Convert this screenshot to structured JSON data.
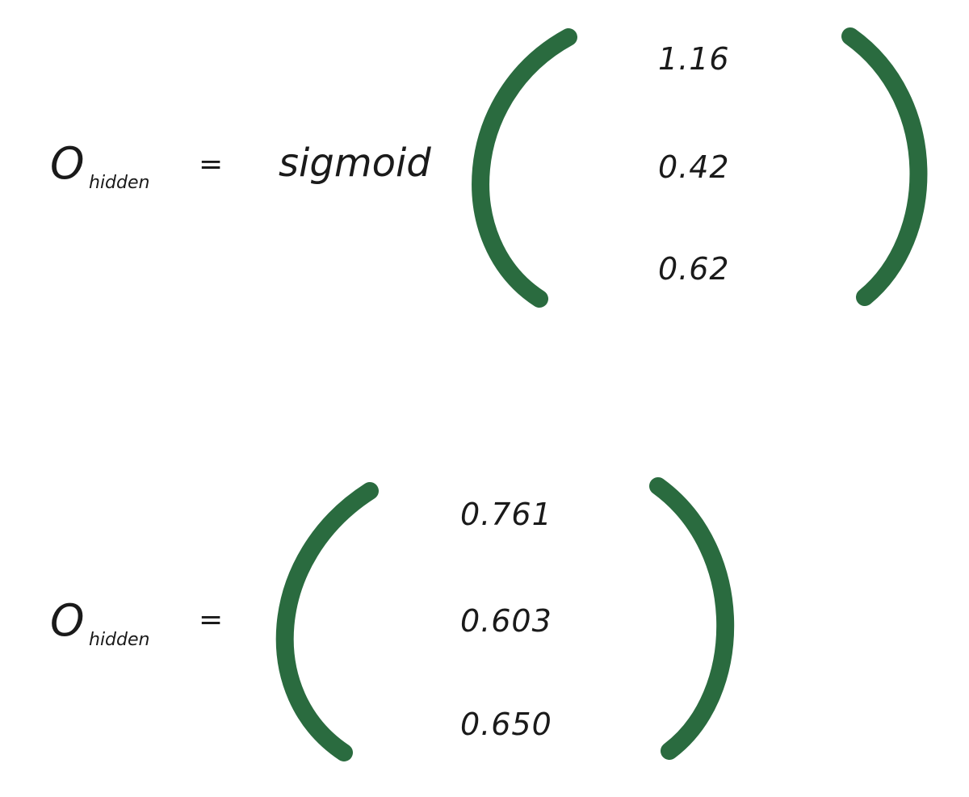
{
  "colors": {
    "bracket": "#2a6b3f",
    "text": "#1a1a1a"
  },
  "equation_1": {
    "symbol": "O",
    "subscript": "hidden",
    "equals": "=",
    "function": "sigmoid",
    "values": [
      "1.16",
      "0.42",
      "0.62"
    ]
  },
  "equation_2": {
    "symbol": "O",
    "subscript": "hidden",
    "equals": "=",
    "values": [
      "0.761",
      "0.603",
      "0.650"
    ]
  }
}
